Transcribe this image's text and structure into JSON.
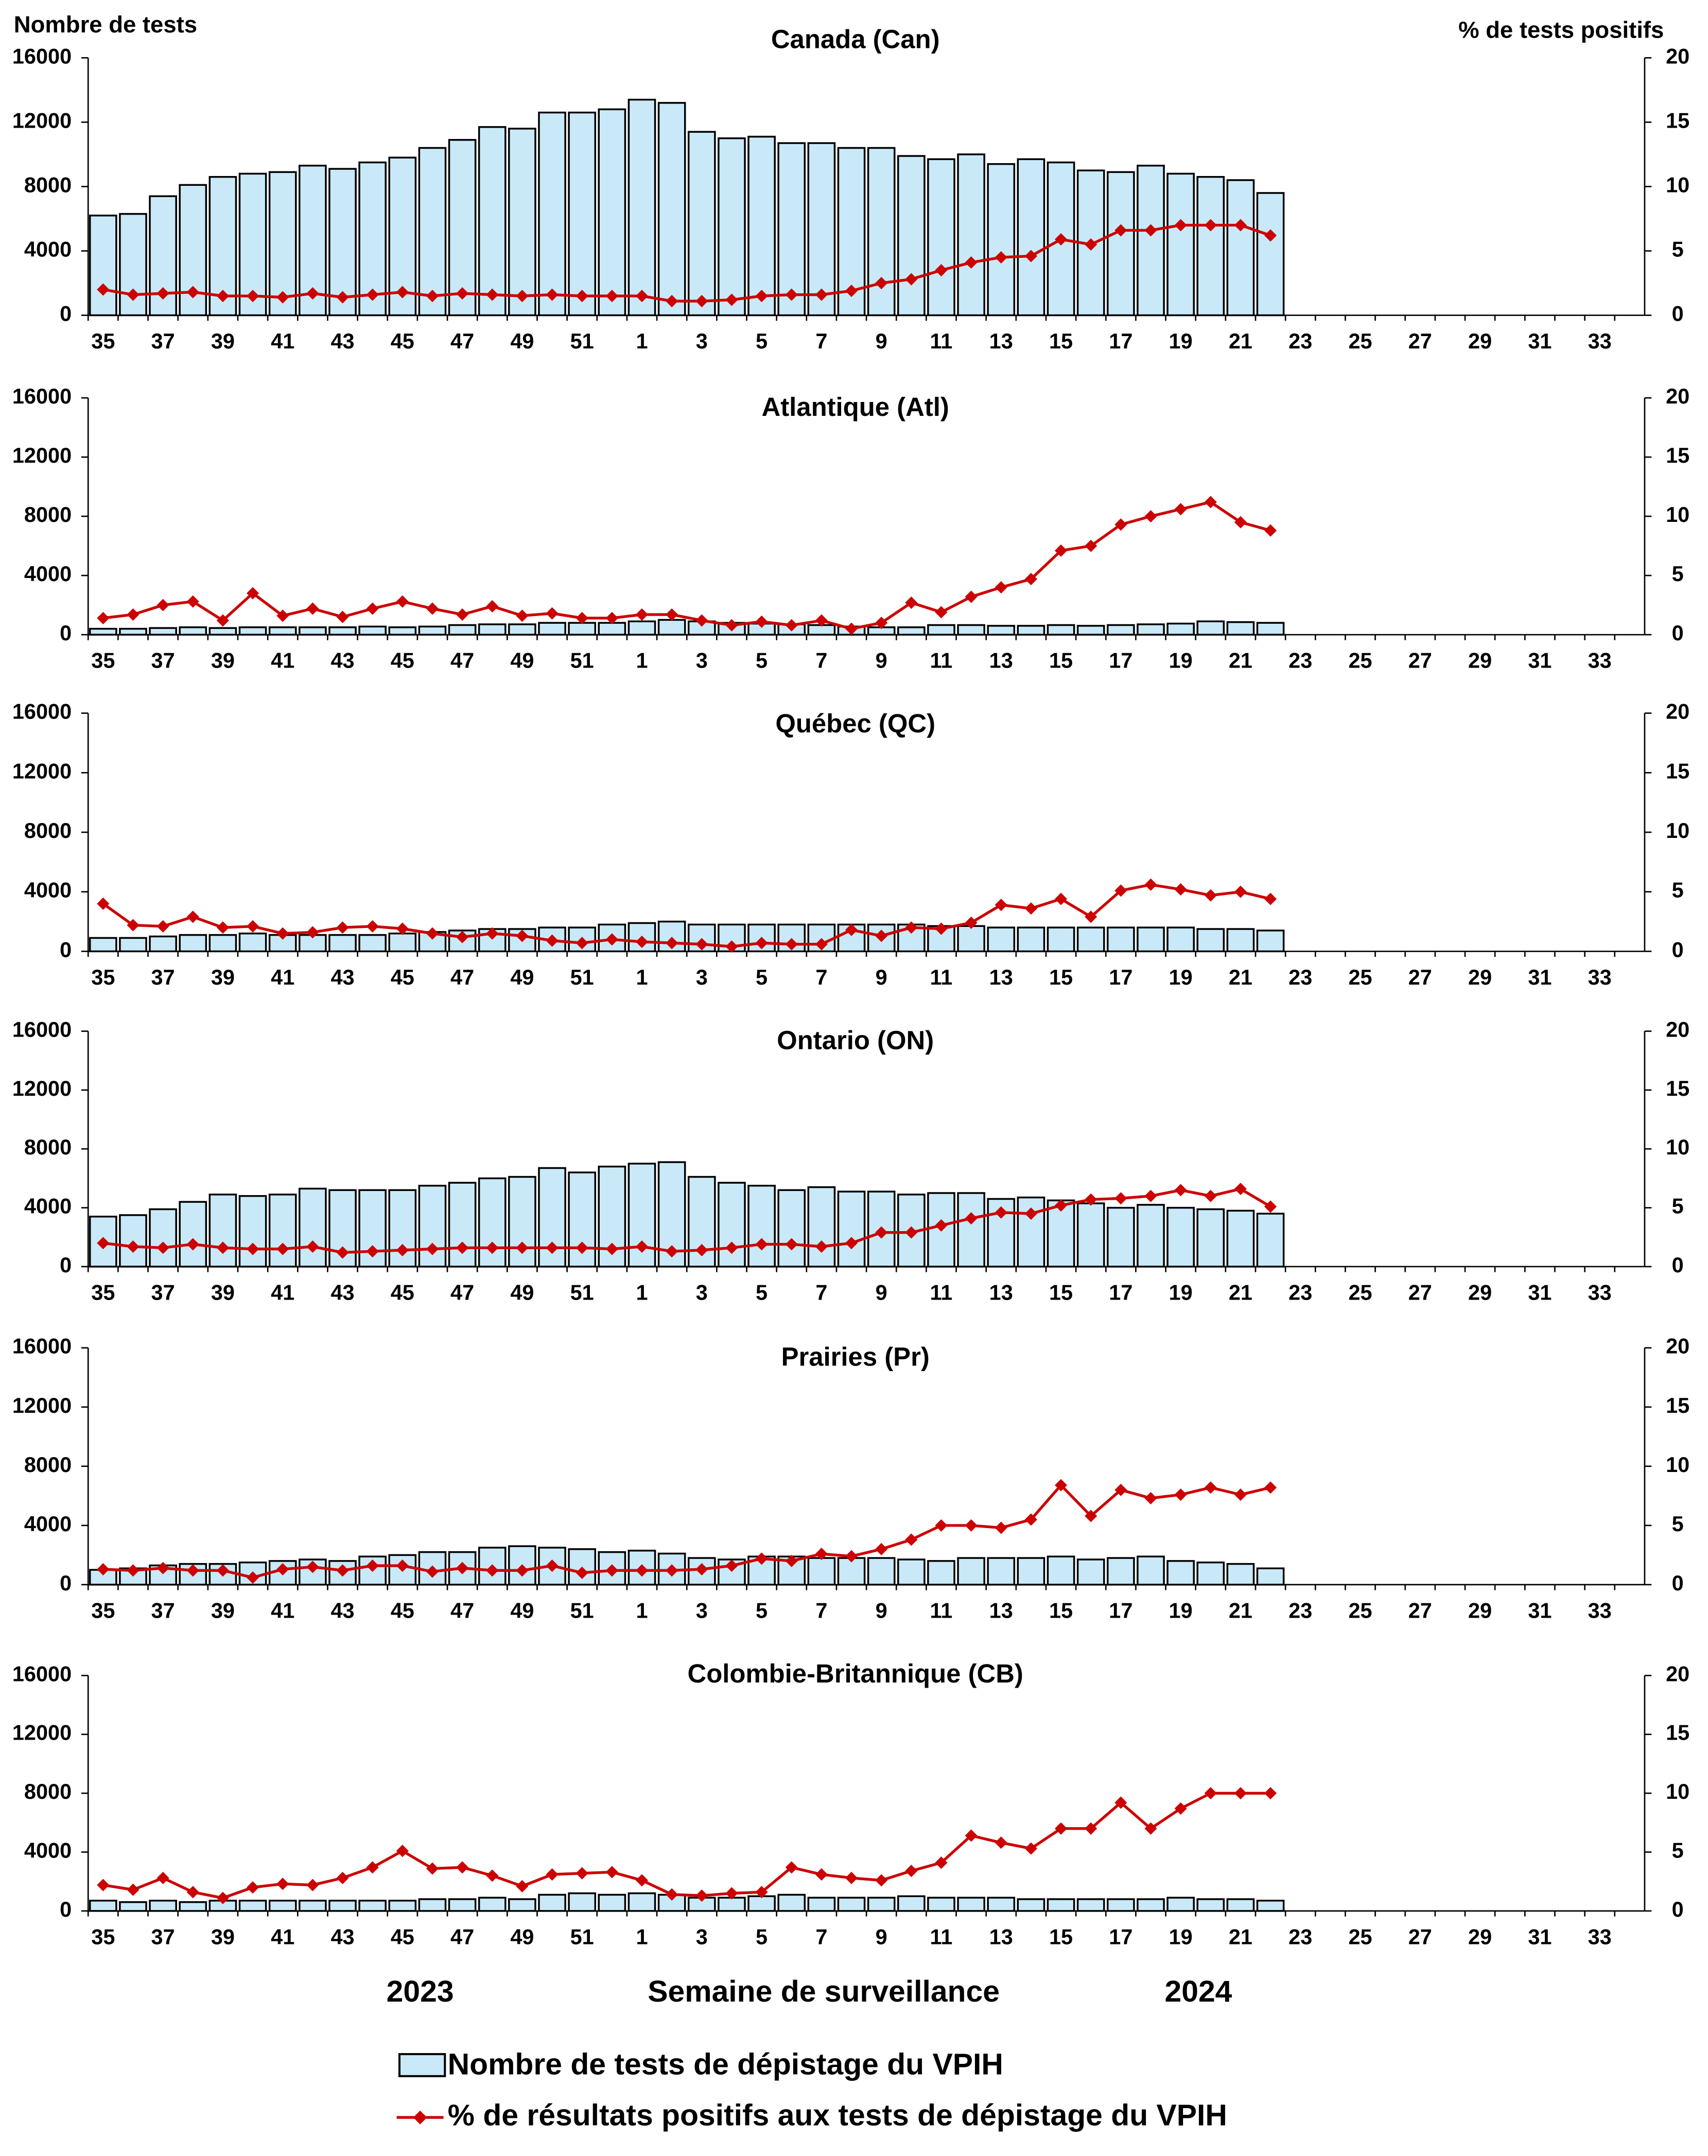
{
  "chart_data": [
    {
      "type": "combo",
      "title": "Canada (Can)",
      "ylabel": "Nombre de tests",
      "y2label": "% de tests positifs",
      "xlabel": "Semaine de surveillance",
      "year_labels": [
        "2023",
        "2024"
      ],
      "categories": [
        "35",
        null,
        "37",
        null,
        "39",
        null,
        "41",
        null,
        "43",
        null,
        "45",
        null,
        "47",
        null,
        "49",
        null,
        "51",
        null,
        "1",
        null,
        "3",
        null,
        "5",
        null,
        "7",
        null,
        "9",
        null,
        "11",
        null,
        "13",
        null,
        "15",
        null,
        "17",
        null,
        "19",
        null,
        "21",
        null,
        "23",
        null,
        "25",
        null,
        "27",
        null,
        "29",
        null,
        "31",
        null,
        "33",
        null
      ],
      "ylim": [
        0,
        16000
      ],
      "yticks": [
        0,
        4000,
        8000,
        12000,
        16000
      ],
      "y2lim": [
        0,
        20
      ],
      "y2ticks": [
        0,
        5,
        10,
        15,
        20
      ],
      "series": [
        {
          "name": "Nombre de tests de dépistage du VPIH",
          "color": "#c9e9f8",
          "values": [
            6200,
            6300,
            7400,
            8100,
            8600,
            8800,
            8900,
            9300,
            9100,
            9500,
            9800,
            10400,
            10900,
            11700,
            11600,
            12600,
            12600,
            12800,
            13400,
            13200,
            11400,
            11000,
            11100,
            10700,
            10700,
            10400,
            10400,
            9900,
            9700,
            10000,
            9400,
            9700,
            9500,
            9000,
            8900,
            9300,
            8800,
            8600,
            8400,
            7600,
            null,
            null,
            null,
            null,
            null,
            null,
            null,
            null,
            null,
            null,
            null,
            null
          ]
        },
        {
          "name": "% de résultats positifs aux tests de dépistage du VPIH",
          "color": "#cc0000",
          "axis": "y2",
          "values": [
            2.0,
            1.6,
            1.7,
            1.8,
            1.5,
            1.5,
            1.4,
            1.7,
            1.4,
            1.6,
            1.8,
            1.5,
            1.7,
            1.6,
            1.5,
            1.6,
            1.5,
            1.5,
            1.5,
            1.1,
            1.1,
            1.2,
            1.5,
            1.6,
            1.6,
            1.9,
            2.5,
            2.8,
            3.5,
            4.1,
            4.5,
            4.6,
            5.9,
            5.5,
            6.6,
            6.6,
            7.0,
            7.0,
            7.0,
            6.2,
            null,
            null,
            null,
            null,
            null,
            null,
            null,
            null,
            null,
            null,
            null,
            null
          ]
        }
      ]
    },
    {
      "type": "combo",
      "title": "Atlantique (Atl)",
      "categories": [
        "35",
        null,
        "37",
        null,
        "39",
        null,
        "41",
        null,
        "43",
        null,
        "45",
        null,
        "47",
        null,
        "49",
        null,
        "51",
        null,
        "1",
        null,
        "3",
        null,
        "5",
        null,
        "7",
        null,
        "9",
        null,
        "11",
        null,
        "13",
        null,
        "15",
        null,
        "17",
        null,
        "19",
        null,
        "21",
        null,
        "23",
        null,
        "25",
        null,
        "27",
        null,
        "29",
        null,
        "31",
        null,
        "33",
        null
      ],
      "ylim": [
        0,
        16000
      ],
      "yticks": [
        0,
        4000,
        8000,
        12000,
        16000
      ],
      "y2lim": [
        0,
        20
      ],
      "y2ticks": [
        0,
        5,
        10,
        15,
        20
      ],
      "series": [
        {
          "color": "#c9e9f8",
          "values": [
            400,
            400,
            450,
            500,
            450,
            500,
            500,
            500,
            500,
            550,
            500,
            550,
            650,
            700,
            700,
            800,
            800,
            800,
            900,
            1000,
            900,
            800,
            750,
            700,
            650,
            550,
            500,
            500,
            650,
            650,
            600,
            600,
            650,
            600,
            650,
            700,
            750,
            900,
            850,
            800,
            null,
            null,
            null,
            null,
            null,
            null,
            null,
            null,
            null,
            null,
            null,
            null
          ]
        },
        {
          "color": "#cc0000",
          "axis": "y2",
          "values": [
            1.4,
            1.7,
            2.5,
            2.8,
            1.2,
            3.5,
            1.6,
            2.2,
            1.5,
            2.2,
            2.8,
            2.2,
            1.7,
            2.4,
            1.6,
            1.8,
            1.4,
            1.4,
            1.7,
            1.7,
            1.2,
            0.8,
            1.1,
            0.8,
            1.2,
            0.5,
            1.0,
            2.7,
            1.9,
            3.2,
            4.0,
            4.7,
            7.1,
            7.5,
            9.3,
            10.0,
            10.6,
            11.2,
            9.5,
            8.8,
            null,
            null,
            null,
            null,
            null,
            null,
            null,
            null,
            null,
            null,
            null,
            null
          ]
        }
      ]
    },
    {
      "type": "combo",
      "title": "Québec (QC)",
      "categories": [
        "35",
        null,
        "37",
        null,
        "39",
        null,
        "41",
        null,
        "43",
        null,
        "45",
        null,
        "47",
        null,
        "49",
        null,
        "51",
        null,
        "1",
        null,
        "3",
        null,
        "5",
        null,
        "7",
        null,
        "9",
        null,
        "11",
        null,
        "13",
        null,
        "15",
        null,
        "17",
        null,
        "19",
        null,
        "21",
        null,
        "23",
        null,
        "25",
        null,
        "27",
        null,
        "29",
        null,
        "31",
        null,
        "33",
        null
      ],
      "ylim": [
        0,
        16000
      ],
      "yticks": [
        0,
        4000,
        8000,
        12000,
        16000
      ],
      "y2lim": [
        0,
        20
      ],
      "y2ticks": [
        0,
        5,
        10,
        15,
        20
      ],
      "series": [
        {
          "color": "#c9e9f8",
          "values": [
            900,
            900,
            1000,
            1100,
            1100,
            1200,
            1100,
            1100,
            1100,
            1100,
            1200,
            1300,
            1400,
            1500,
            1500,
            1600,
            1600,
            1800,
            1900,
            2000,
            1800,
            1800,
            1800,
            1800,
            1800,
            1800,
            1800,
            1800,
            1700,
            1700,
            1600,
            1600,
            1600,
            1600,
            1600,
            1600,
            1600,
            1500,
            1500,
            1400,
            null,
            null,
            null,
            null,
            null,
            null,
            null,
            null,
            null,
            null,
            null,
            null
          ]
        },
        {
          "color": "#cc0000",
          "axis": "y2",
          "values": [
            4.0,
            2.2,
            2.1,
            2.9,
            2.0,
            2.1,
            1.5,
            1.6,
            2.0,
            2.1,
            1.9,
            1.5,
            1.2,
            1.5,
            1.3,
            0.9,
            0.7,
            1.0,
            0.8,
            0.7,
            0.6,
            0.4,
            0.7,
            0.6,
            0.6,
            1.8,
            1.3,
            2.0,
            1.9,
            2.4,
            3.9,
            3.6,
            4.4,
            2.9,
            5.1,
            5.6,
            5.2,
            4.7,
            5.0,
            4.4,
            null,
            null,
            null,
            null,
            null,
            null,
            null,
            null,
            null,
            null,
            null,
            null
          ]
        }
      ]
    },
    {
      "type": "combo",
      "title": "Ontario (ON)",
      "categories": [
        "35",
        null,
        "37",
        null,
        "39",
        null,
        "41",
        null,
        "43",
        null,
        "45",
        null,
        "47",
        null,
        "49",
        null,
        "51",
        null,
        "1",
        null,
        "3",
        null,
        "5",
        null,
        "7",
        null,
        "9",
        null,
        "11",
        null,
        "13",
        null,
        "15",
        null,
        "17",
        null,
        "19",
        null,
        "21",
        null,
        "23",
        null,
        "25",
        null,
        "27",
        null,
        "29",
        null,
        "31",
        null,
        "33",
        null
      ],
      "ylim": [
        0,
        16000
      ],
      "yticks": [
        0,
        4000,
        8000,
        12000,
        16000
      ],
      "y2lim": [
        0,
        20
      ],
      "y2ticks": [
        0,
        5,
        10,
        15,
        20
      ],
      "series": [
        {
          "color": "#c9e9f8",
          "values": [
            3400,
            3500,
            3900,
            4400,
            4900,
            4800,
            4900,
            5300,
            5200,
            5200,
            5200,
            5500,
            5700,
            6000,
            6100,
            6700,
            6400,
            6800,
            7000,
            7100,
            6100,
            5700,
            5500,
            5200,
            5400,
            5100,
            5100,
            4900,
            5000,
            5000,
            4600,
            4700,
            4500,
            4300,
            4000,
            4200,
            4000,
            3900,
            3800,
            3600,
            null,
            null,
            null,
            null,
            null,
            null,
            null,
            null,
            null,
            null,
            null,
            null
          ]
        },
        {
          "color": "#cc0000",
          "axis": "y2",
          "values": [
            2.0,
            1.7,
            1.6,
            1.9,
            1.6,
            1.5,
            1.5,
            1.7,
            1.2,
            1.3,
            1.4,
            1.5,
            1.6,
            1.6,
            1.6,
            1.6,
            1.6,
            1.5,
            1.7,
            1.3,
            1.4,
            1.6,
            1.9,
            1.9,
            1.7,
            2.0,
            2.9,
            2.9,
            3.5,
            4.1,
            4.6,
            4.5,
            5.2,
            5.7,
            5.8,
            6.0,
            6.5,
            6.0,
            6.6,
            5.1,
            null,
            null,
            null,
            null,
            null,
            null,
            null,
            null,
            null,
            null,
            null,
            null
          ]
        }
      ]
    },
    {
      "type": "combo",
      "title": "Prairies (Pr)",
      "categories": [
        "35",
        null,
        "37",
        null,
        "39",
        null,
        "41",
        null,
        "43",
        null,
        "45",
        null,
        "47",
        null,
        "49",
        null,
        "51",
        null,
        "1",
        null,
        "3",
        null,
        "5",
        null,
        "7",
        null,
        "9",
        null,
        "11",
        null,
        "13",
        null,
        "15",
        null,
        "17",
        null,
        "19",
        null,
        "21",
        null,
        "23",
        null,
        "25",
        null,
        "27",
        null,
        "29",
        null,
        "31",
        null,
        "33",
        null
      ],
      "ylim": [
        0,
        16000
      ],
      "yticks": [
        0,
        4000,
        8000,
        12000,
        16000
      ],
      "y2lim": [
        0,
        20
      ],
      "y2ticks": [
        0,
        5,
        10,
        15,
        20
      ],
      "series": [
        {
          "color": "#c9e9f8",
          "values": [
            1000,
            1100,
            1300,
            1400,
            1400,
            1500,
            1600,
            1700,
            1600,
            1900,
            2000,
            2200,
            2200,
            2500,
            2600,
            2500,
            2400,
            2200,
            2300,
            2100,
            1800,
            1700,
            1900,
            1900,
            1800,
            1800,
            1800,
            1700,
            1600,
            1800,
            1800,
            1800,
            1900,
            1700,
            1800,
            1900,
            1600,
            1500,
            1400,
            1100,
            null,
            null,
            null,
            null,
            null,
            null,
            null,
            null,
            null,
            null,
            null,
            null
          ]
        },
        {
          "color": "#cc0000",
          "axis": "y2",
          "values": [
            1.3,
            1.2,
            1.4,
            1.2,
            1.2,
            0.6,
            1.3,
            1.5,
            1.2,
            1.6,
            1.6,
            1.1,
            1.4,
            1.2,
            1.2,
            1.6,
            1.0,
            1.2,
            1.2,
            1.2,
            1.3,
            1.6,
            2.2,
            2.0,
            2.6,
            2.4,
            3.0,
            3.8,
            5.0,
            5.0,
            4.8,
            5.5,
            8.4,
            5.8,
            8.0,
            7.3,
            7.6,
            8.2,
            7.6,
            8.2,
            null,
            null,
            null,
            null,
            null,
            null,
            null,
            null,
            null,
            null,
            null,
            null
          ]
        }
      ]
    },
    {
      "type": "combo",
      "title": "Colombie-Britannique (CB)",
      "categories": [
        "35",
        null,
        "37",
        null,
        "39",
        null,
        "41",
        null,
        "43",
        null,
        "45",
        null,
        "47",
        null,
        "49",
        null,
        "51",
        null,
        "1",
        null,
        "3",
        null,
        "5",
        null,
        "7",
        null,
        "9",
        null,
        "11",
        null,
        "13",
        null,
        "15",
        null,
        "17",
        null,
        "19",
        null,
        "21",
        null,
        "23",
        null,
        "25",
        null,
        "27",
        null,
        "29",
        null,
        "31",
        null,
        "33",
        null
      ],
      "ylim": [
        0,
        16000
      ],
      "yticks": [
        0,
        4000,
        8000,
        12000,
        16000
      ],
      "y2lim": [
        0,
        20
      ],
      "y2ticks": [
        0,
        5,
        10,
        15,
        20
      ],
      "series": [
        {
          "color": "#c9e9f8",
          "values": [
            700,
            600,
            700,
            600,
            700,
            700,
            700,
            700,
            700,
            700,
            700,
            800,
            800,
            900,
            800,
            1100,
            1200,
            1100,
            1200,
            1100,
            900,
            900,
            1000,
            1100,
            900,
            900,
            900,
            1000,
            900,
            900,
            900,
            800,
            800,
            800,
            800,
            800,
            900,
            800,
            800,
            700,
            null,
            null,
            null,
            null,
            null,
            null,
            null,
            null,
            null,
            null,
            null,
            null
          ]
        },
        {
          "color": "#cc0000",
          "axis": "y2",
          "values": [
            2.2,
            1.8,
            2.8,
            1.6,
            1.1,
            2.0,
            2.3,
            2.2,
            2.8,
            3.7,
            5.1,
            3.6,
            3.7,
            3.0,
            2.1,
            3.1,
            3.2,
            3.3,
            2.6,
            1.4,
            1.3,
            1.5,
            1.6,
            3.7,
            3.1,
            2.8,
            2.6,
            3.4,
            4.1,
            6.4,
            5.8,
            5.3,
            7.0,
            7.0,
            9.2,
            7.0,
            8.7,
            10.0,
            10.0,
            10.0,
            null,
            null,
            null,
            null,
            null,
            null,
            null,
            null,
            null,
            null,
            null,
            null
          ]
        }
      ]
    }
  ]
}
